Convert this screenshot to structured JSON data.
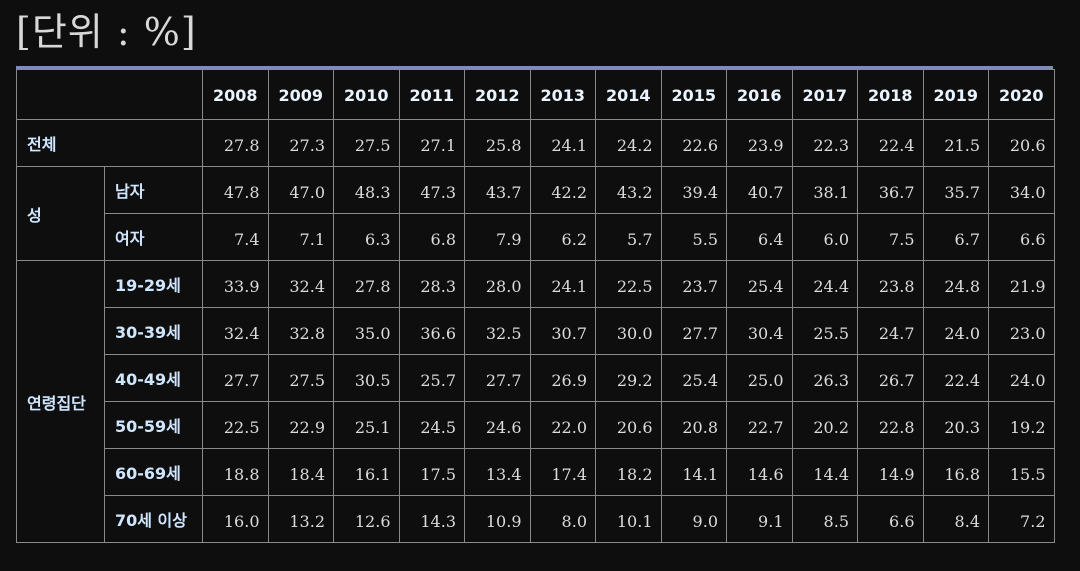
{
  "unit_label": "[단위 : %]",
  "years": [
    "2008",
    "2009",
    "2010",
    "2011",
    "2012",
    "2013",
    "2014",
    "2015",
    "2016",
    "2017",
    "2018",
    "2019",
    "2020"
  ],
  "total": {
    "label": "전체",
    "values": [
      "27.8",
      "27.3",
      "27.5",
      "27.1",
      "25.8",
      "24.1",
      "24.2",
      "22.6",
      "23.9",
      "22.3",
      "22.4",
      "21.5",
      "20.6"
    ]
  },
  "sex": {
    "label": "성",
    "rows": [
      {
        "label": "남자",
        "values": [
          "47.8",
          "47.0",
          "48.3",
          "47.3",
          "43.7",
          "42.2",
          "43.2",
          "39.4",
          "40.7",
          "38.1",
          "36.7",
          "35.7",
          "34.0"
        ]
      },
      {
        "label": "여자",
        "values": [
          "7.4",
          "7.1",
          "6.3",
          "6.8",
          "7.9",
          "6.2",
          "5.7",
          "5.5",
          "6.4",
          "6.0",
          "7.5",
          "6.7",
          "6.6"
        ]
      }
    ]
  },
  "age": {
    "label": "연령집단",
    "rows": [
      {
        "label": "19-29세",
        "values": [
          "33.9",
          "32.4",
          "27.8",
          "28.3",
          "28.0",
          "24.1",
          "22.5",
          "23.7",
          "25.4",
          "24.4",
          "23.8",
          "24.8",
          "21.9"
        ]
      },
      {
        "label": "30-39세",
        "values": [
          "32.4",
          "32.8",
          "35.0",
          "36.6",
          "32.5",
          "30.7",
          "30.0",
          "27.7",
          "30.4",
          "25.5",
          "24.7",
          "24.0",
          "23.0"
        ]
      },
      {
        "label": "40-49세",
        "values": [
          "27.7",
          "27.5",
          "30.5",
          "25.7",
          "27.7",
          "26.9",
          "29.2",
          "25.4",
          "25.0",
          "26.3",
          "26.7",
          "22.4",
          "24.0"
        ]
      },
      {
        "label": "50-59세",
        "values": [
          "22.5",
          "22.9",
          "25.1",
          "24.5",
          "24.6",
          "22.0",
          "20.6",
          "20.8",
          "22.7",
          "20.2",
          "22.8",
          "20.3",
          "19.2"
        ]
      },
      {
        "label": "60-69세",
        "values": [
          "18.8",
          "18.4",
          "16.1",
          "17.5",
          "13.4",
          "17.4",
          "18.2",
          "14.1",
          "14.6",
          "14.4",
          "14.9",
          "16.8",
          "15.5"
        ]
      },
      {
        "label": "70세 이상",
        "values": [
          "16.0",
          "13.2",
          "12.6",
          "14.3",
          "10.9",
          "8.0",
          "10.1",
          "9.0",
          "9.1",
          "8.5",
          "6.6",
          "8.4",
          "7.2"
        ]
      }
    ]
  }
}
